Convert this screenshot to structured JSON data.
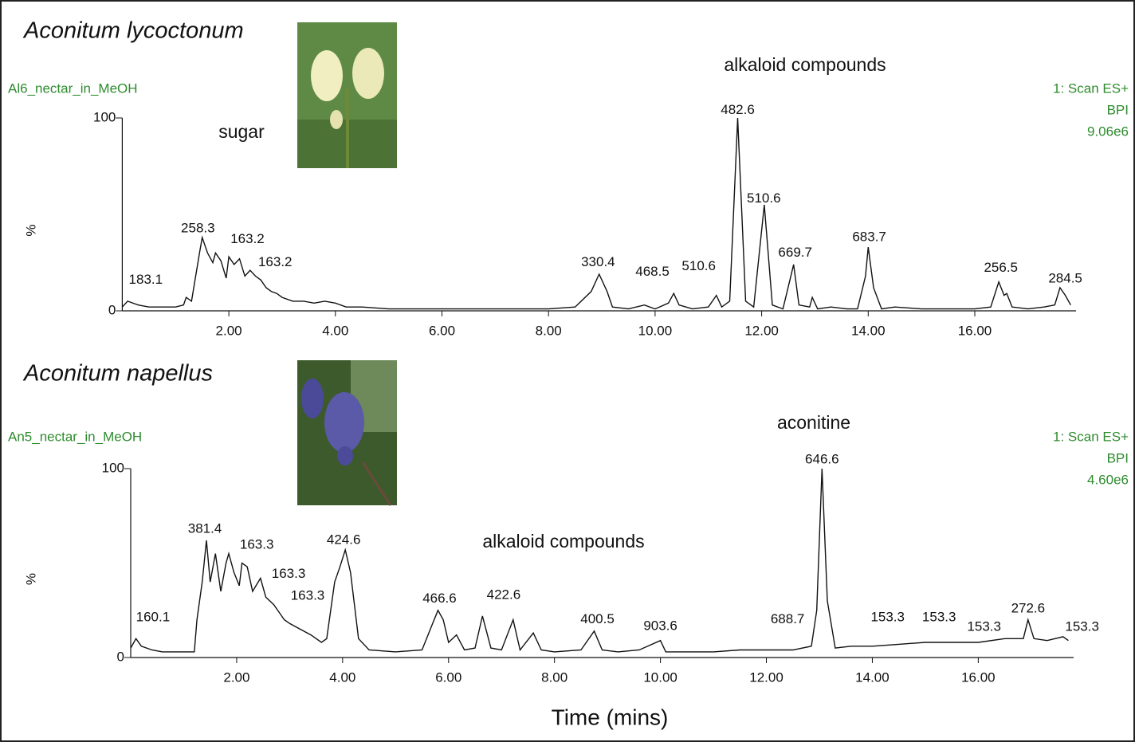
{
  "chart_data": [
    {
      "type": "line",
      "title": "Aconitum lycoctonum",
      "subtitle": "Al6_nectar_in_MeOH",
      "scan": "1: Scan ES+",
      "mode": "BPI",
      "intensity": "9.06e6",
      "labels": [
        "sugar",
        "alkaloid compounds"
      ],
      "ylabel": "%",
      "color": "#111111",
      "xlim": [
        0,
        17.9
      ],
      "ylim": [
        0,
        100
      ],
      "yticks": [
        0,
        100
      ],
      "xticks": [
        {
          "value": 2,
          "label": "2.00"
        },
        {
          "value": 4,
          "label": "4.00"
        },
        {
          "value": 6,
          "label": "6.00"
        },
        {
          "value": 8,
          "label": "8.00"
        },
        {
          "value": 10,
          "label": "10.00"
        },
        {
          "value": 12,
          "label": "12.00"
        },
        {
          "value": 14,
          "label": "14.00"
        },
        {
          "value": 16,
          "label": "16.00"
        }
      ],
      "x": [
        0,
        0.1,
        0.3,
        0.5,
        0.8,
        1.0,
        1.15,
        1.2,
        1.3,
        1.45,
        1.5,
        1.6,
        1.7,
        1.75,
        1.85,
        1.95,
        2.0,
        2.1,
        2.2,
        2.3,
        2.4,
        2.5,
        2.6,
        2.7,
        2.8,
        2.9,
        3.0,
        3.2,
        3.4,
        3.6,
        3.8,
        4.0,
        4.2,
        4.5,
        5.0,
        5.5,
        6.0,
        6.5,
        7.0,
        7.5,
        8.0,
        8.5,
        8.8,
        8.95,
        9.1,
        9.2,
        9.5,
        9.8,
        10.0,
        10.25,
        10.35,
        10.45,
        10.7,
        11.0,
        11.15,
        11.25,
        11.4,
        11.55,
        11.7,
        11.85,
        12.05,
        12.2,
        12.4,
        12.6,
        12.7,
        12.9,
        12.95,
        13.05,
        13.3,
        13.6,
        13.8,
        13.95,
        14.0,
        14.1,
        14.25,
        14.5,
        15.0,
        15.5,
        16.0,
        16.3,
        16.45,
        16.55,
        16.6,
        16.7,
        17.0,
        17.3,
        17.5,
        17.6,
        17.7,
        17.8
      ],
      "values": [
        2,
        5,
        3,
        2,
        2,
        2,
        3,
        7,
        5,
        30,
        38,
        30,
        25,
        30,
        26,
        17,
        28,
        24,
        27,
        18,
        21,
        18,
        16,
        12,
        10,
        9,
        7,
        5,
        5,
        4,
        5,
        4,
        2,
        2,
        1,
        1,
        1,
        1,
        1,
        1,
        1,
        2,
        10,
        19,
        10,
        2,
        1,
        3,
        1,
        4,
        9,
        3,
        1,
        2,
        8,
        2,
        5,
        100,
        5,
        2,
        55,
        3,
        1,
        24,
        3,
        2,
        7,
        1,
        2,
        1,
        1,
        18,
        33,
        12,
        1,
        2,
        1,
        1,
        1,
        2,
        15,
        8,
        9,
        2,
        1,
        2,
        3,
        12,
        8,
        3
      ],
      "annotations": [
        {
          "text": "183.1",
          "x": 0.44,
          "y": 16
        },
        {
          "text": "258.3",
          "x": 1.42,
          "y": 42.6
        },
        {
          "text": "163.2",
          "x": 2.35,
          "y": 37
        },
        {
          "text": "163.2",
          "x": 2.87,
          "y": 25
        },
        {
          "text": "330.4",
          "x": 8.93,
          "y": 25
        },
        {
          "text": "468.5",
          "x": 9.95,
          "y": 20
        },
        {
          "text": "510.6",
          "x": 10.82,
          "y": 23
        },
        {
          "text": "482.6",
          "x": 11.55,
          "y": 104
        },
        {
          "text": "510.6",
          "x": 12.04,
          "y": 58
        },
        {
          "text": "669.7",
          "x": 12.63,
          "y": 30
        },
        {
          "text": "683.7",
          "x": 14.02,
          "y": 38
        },
        {
          "text": "256.5",
          "x": 16.49,
          "y": 22
        },
        {
          "text": "284.5",
          "x": 17.7,
          "y": 16.5
        }
      ]
    },
    {
      "type": "line",
      "title": "Aconitum napellus",
      "subtitle": "An5_nectar_in_MeOH",
      "scan": "1: Scan ES+",
      "mode": "BPI",
      "intensity": "4.60e6",
      "labels": [
        "aconitine",
        "alkaloid compounds"
      ],
      "ylabel": "%",
      "xlabel": "Time (mins)",
      "color": "#111111",
      "xlim": [
        0,
        17.8
      ],
      "ylim": [
        0,
        100
      ],
      "yticks": [
        0,
        100
      ],
      "xticks": [
        {
          "value": 2,
          "label": "2.00"
        },
        {
          "value": 4,
          "label": "4.00"
        },
        {
          "value": 6,
          "label": "6.00"
        },
        {
          "value": 8,
          "label": "8.00"
        },
        {
          "value": 10,
          "label": "10.00"
        },
        {
          "value": 12,
          "label": "12.00"
        },
        {
          "value": 14,
          "label": "14.00"
        },
        {
          "value": 16,
          "label": "16.00"
        }
      ],
      "x": [
        0,
        0.1,
        0.2,
        0.4,
        0.6,
        0.9,
        1.2,
        1.25,
        1.35,
        1.43,
        1.5,
        1.6,
        1.7,
        1.8,
        1.85,
        1.95,
        2.05,
        2.1,
        2.2,
        2.3,
        2.45,
        2.55,
        2.7,
        2.8,
        2.9,
        3.0,
        3.2,
        3.4,
        3.6,
        3.7,
        3.85,
        3.95,
        4.05,
        4.15,
        4.3,
        4.5,
        5.0,
        5.5,
        5.7,
        5.8,
        5.9,
        6.0,
        6.15,
        6.3,
        6.5,
        6.64,
        6.8,
        7.0,
        7.22,
        7.35,
        7.6,
        7.75,
        8.0,
        8.5,
        8.75,
        8.9,
        9.2,
        9.6,
        10.0,
        10.1,
        10.5,
        11.0,
        11.5,
        12.0,
        12.5,
        12.85,
        12.95,
        13.05,
        13.15,
        13.3,
        13.6,
        14.0,
        14.5,
        15.0,
        15.5,
        16.0,
        16.5,
        16.85,
        16.94,
        17.05,
        17.3,
        17.6,
        17.7
      ],
      "values": [
        5,
        10,
        6,
        4,
        3,
        3,
        3,
        20,
        40,
        62,
        40,
        55,
        35,
        50,
        55,
        45,
        38,
        50,
        48,
        35,
        42,
        32,
        28,
        24,
        20,
        18,
        15,
        12,
        8,
        10,
        40,
        48,
        57,
        45,
        10,
        4,
        3,
        4,
        18,
        25,
        20,
        8,
        12,
        4,
        5,
        22,
        5,
        4,
        20,
        4,
        13,
        4,
        3,
        4,
        14,
        4,
        3,
        4,
        9,
        3,
        3,
        3,
        4,
        4,
        4,
        6,
        25,
        100,
        30,
        5,
        6,
        6,
        7,
        8,
        8,
        8,
        10,
        10,
        20,
        10,
        9,
        11,
        9
      ],
      "annotations": [
        {
          "text": "160.1",
          "x": 0.42,
          "y": 21
        },
        {
          "text": "381.4",
          "x": 1.4,
          "y": 68
        },
        {
          "text": "163.3",
          "x": 2.38,
          "y": 59.5
        },
        {
          "text": "424.6",
          "x": 4.02,
          "y": 62
        },
        {
          "text": "163.3",
          "x": 2.98,
          "y": 44
        },
        {
          "text": "163.3",
          "x": 3.34,
          "y": 32.5
        },
        {
          "text": "466.6",
          "x": 5.83,
          "y": 31
        },
        {
          "text": "422.6",
          "x": 7.04,
          "y": 33
        },
        {
          "text": "400.5",
          "x": 8.81,
          "y": 20
        },
        {
          "text": "903.6",
          "x": 10.0,
          "y": 16.5
        },
        {
          "text": "688.7",
          "x": 12.4,
          "y": 20
        },
        {
          "text": "646.6",
          "x": 13.05,
          "y": 104.6
        },
        {
          "text": "153.3",
          "x": 14.29,
          "y": 21
        },
        {
          "text": "153.3",
          "x": 15.26,
          "y": 21
        },
        {
          "text": "153.3",
          "x": 16.11,
          "y": 16
        },
        {
          "text": "272.6",
          "x": 16.94,
          "y": 25.7
        },
        {
          "text": "153.3",
          "x": 17.96,
          "y": 16
        }
      ]
    }
  ]
}
